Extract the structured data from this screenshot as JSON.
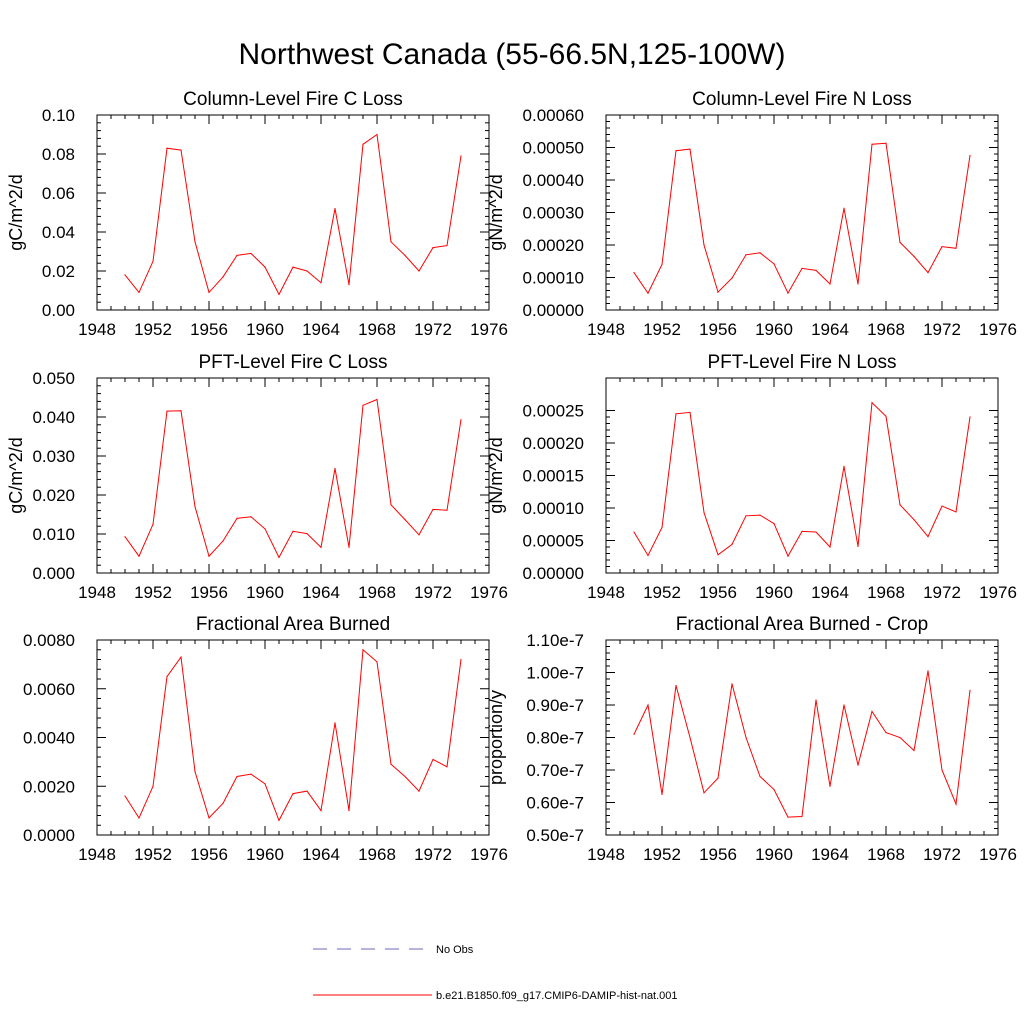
{
  "title": "Northwest Canada (55-66.5N,125-100W)",
  "legend": [
    {
      "label": "No Obs",
      "color": "#6a6ab8",
      "dashed": true
    },
    {
      "label": "b.e21.B1850.f09_g17.CMIP6-DAMIP-hist-nat.001",
      "color": "#ff0000",
      "dashed": false
    }
  ],
  "chart_data": [
    {
      "type": "line",
      "title": "Column-Level Fire C Loss",
      "ylabel": "gC/m^2/d",
      "xlim": [
        1948,
        1976
      ],
      "ylim": [
        0,
        0.1
      ],
      "xticks": [
        1948,
        1952,
        1956,
        1960,
        1964,
        1968,
        1972,
        1976
      ],
      "yticks": [
        0,
        0.02,
        0.04,
        0.06,
        0.08,
        0.1
      ],
      "ytick_labels": [
        "0.00",
        "0.02",
        "0.04",
        "0.06",
        "0.08",
        "0.10"
      ],
      "x": [
        1950,
        1951,
        1952,
        1953,
        1954,
        1955,
        1956,
        1957,
        1958,
        1959,
        1960,
        1961,
        1962,
        1963,
        1964,
        1965,
        1966,
        1967,
        1968,
        1969,
        1970,
        1971,
        1972,
        1973,
        1974
      ],
      "series": [
        {
          "color": "#ff0000",
          "values": [
            0.018,
            0.009,
            0.025,
            0.083,
            0.082,
            0.035,
            0.009,
            0.017,
            0.028,
            0.029,
            0.022,
            0.008,
            0.022,
            0.02,
            0.014,
            0.052,
            0.013,
            0.085,
            0.09,
            0.035,
            0.028,
            0.02,
            0.032,
            0.033,
            0.079
          ]
        }
      ]
    },
    {
      "type": "line",
      "title": "Column-Level Fire N Loss",
      "ylabel": "gN/m^2/d",
      "xlim": [
        1948,
        1976
      ],
      "ylim": [
        0,
        0.0006
      ],
      "xticks": [
        1948,
        1952,
        1956,
        1960,
        1964,
        1968,
        1972,
        1976
      ],
      "yticks": [
        0,
        0.0001,
        0.0002,
        0.0003,
        0.0004,
        0.0005,
        0.0006
      ],
      "ytick_labels": [
        "0.00000",
        "0.00010",
        "0.00020",
        "0.00030",
        "0.00040",
        "0.00050",
        "0.00060"
      ],
      "x": [
        1950,
        1951,
        1952,
        1953,
        1954,
        1955,
        1956,
        1957,
        1958,
        1959,
        1960,
        1961,
        1962,
        1963,
        1964,
        1965,
        1966,
        1967,
        1968,
        1969,
        1970,
        1971,
        1972,
        1973,
        1974
      ],
      "series": [
        {
          "color": "#ff0000",
          "values": [
            0.000115,
            5.2e-05,
            0.00014,
            0.00049,
            0.000495,
            0.0002,
            5.5e-05,
            9.8e-05,
            0.00017,
            0.000176,
            0.000142,
            5.2e-05,
            0.000128,
            0.000122,
            8e-05,
            0.000313,
            8e-05,
            0.00051,
            0.000513,
            0.000208,
            0.000165,
            0.000115,
            0.000195,
            0.00019,
            0.000475
          ]
        }
      ]
    },
    {
      "type": "line",
      "title": "PFT-Level Fire C Loss",
      "ylabel": "gC/m^2/d",
      "xlim": [
        1948,
        1976
      ],
      "ylim": [
        0,
        0.05
      ],
      "xticks": [
        1948,
        1952,
        1956,
        1960,
        1964,
        1968,
        1972,
        1976
      ],
      "yticks": [
        0,
        0.01,
        0.02,
        0.03,
        0.04,
        0.05
      ],
      "ytick_labels": [
        "0.000",
        "0.010",
        "0.020",
        "0.030",
        "0.040",
        "0.050"
      ],
      "x": [
        1950,
        1951,
        1952,
        1953,
        1954,
        1955,
        1956,
        1957,
        1958,
        1959,
        1960,
        1961,
        1962,
        1963,
        1964,
        1965,
        1966,
        1967,
        1968,
        1969,
        1970,
        1971,
        1972,
        1973,
        1974
      ],
      "series": [
        {
          "color": "#ff0000",
          "values": [
            0.0093,
            0.0043,
            0.0125,
            0.0415,
            0.0416,
            0.017,
            0.0043,
            0.0082,
            0.014,
            0.0144,
            0.0113,
            0.004,
            0.0107,
            0.0101,
            0.0066,
            0.0268,
            0.0066,
            0.043,
            0.0445,
            0.0175,
            0.0137,
            0.0098,
            0.0163,
            0.0161,
            0.0393
          ]
        }
      ]
    },
    {
      "type": "line",
      "title": "PFT-Level Fire N Loss",
      "ylabel": "gN/m^2/d",
      "xlim": [
        1948,
        1976
      ],
      "ylim": [
        0,
        0.0003
      ],
      "xticks": [
        1948,
        1952,
        1956,
        1960,
        1964,
        1968,
        1972,
        1976
      ],
      "yticks": [
        0,
        5e-05,
        0.0001,
        0.00015,
        0.0002,
        0.00025
      ],
      "ytick_labels": [
        "0.00000",
        "0.00005",
        "0.00010",
        "0.00015",
        "0.00020",
        "0.00025"
      ],
      "x": [
        1950,
        1951,
        1952,
        1953,
        1954,
        1955,
        1956,
        1957,
        1958,
        1959,
        1960,
        1961,
        1962,
        1963,
        1964,
        1965,
        1966,
        1967,
        1968,
        1969,
        1970,
        1971,
        1972,
        1973,
        1974
      ],
      "series": [
        {
          "color": "#ff0000",
          "values": [
            6.3e-05,
            2.7e-05,
            7e-05,
            0.000245,
            0.000247,
            9.3e-05,
            2.8e-05,
            4.4e-05,
            8.8e-05,
            8.9e-05,
            7.6e-05,
            2.6e-05,
            6.4e-05,
            6.3e-05,
            4e-05,
            0.000164,
            4.1e-05,
            0.000262,
            0.000241,
            0.000105,
            8.2e-05,
            5.6e-05,
            0.000103,
            9.4e-05,
            0.00024
          ]
        }
      ]
    },
    {
      "type": "line",
      "title": "Fractional Area Burned",
      "ylabel": "",
      "xlim": [
        1948,
        1976
      ],
      "ylim": [
        0,
        0.008
      ],
      "xticks": [
        1948,
        1952,
        1956,
        1960,
        1964,
        1968,
        1972,
        1976
      ],
      "yticks": [
        0,
        0.002,
        0.004,
        0.006,
        0.008
      ],
      "ytick_labels": [
        "0.0000",
        "0.0020",
        "0.0040",
        "0.0060",
        "0.0080"
      ],
      "x": [
        1950,
        1951,
        1952,
        1953,
        1954,
        1955,
        1956,
        1957,
        1958,
        1959,
        1960,
        1961,
        1962,
        1963,
        1964,
        1965,
        1966,
        1967,
        1968,
        1969,
        1970,
        1971,
        1972,
        1973,
        1974
      ],
      "series": [
        {
          "color": "#ff0000",
          "values": [
            0.0016,
            0.0007,
            0.002,
            0.0065,
            0.0073,
            0.0026,
            0.0007,
            0.0013,
            0.0024,
            0.0025,
            0.0021,
            0.0006,
            0.0017,
            0.0018,
            0.001,
            0.0046,
            0.001,
            0.0076,
            0.0071,
            0.0029,
            0.0024,
            0.0018,
            0.0031,
            0.0028,
            0.0072
          ]
        }
      ]
    },
    {
      "type": "line",
      "title": "Fractional Area Burned - Crop",
      "ylabel": "proportion/y",
      "xlim": [
        1948,
        1976
      ],
      "ylim": [
        5e-08,
        1.1e-07
      ],
      "xticks": [
        1948,
        1952,
        1956,
        1960,
        1964,
        1968,
        1972,
        1976
      ],
      "yticks": [
        5e-08,
        6e-08,
        7e-08,
        8e-08,
        9e-08,
        1e-07,
        1.1e-07
      ],
      "ytick_labels": [
        "0.50e-7",
        "0.60e-7",
        "0.70e-7",
        "0.80e-7",
        "0.90e-7",
        "1.00e-7",
        "1.10e-7"
      ],
      "x": [
        1950,
        1951,
        1952,
        1953,
        1954,
        1955,
        1956,
        1957,
        1958,
        1959,
        1960,
        1961,
        1962,
        1963,
        1964,
        1965,
        1966,
        1967,
        1968,
        1969,
        1970,
        1971,
        1972,
        1973,
        1974
      ],
      "series": [
        {
          "color": "#ff0000",
          "values": [
            8.1e-08,
            9e-08,
            6.25e-08,
            9.6e-08,
            8e-08,
            6.3e-08,
            6.75e-08,
            9.65e-08,
            8e-08,
            6.8e-08,
            6.4e-08,
            5.55e-08,
            5.57e-08,
            9.15e-08,
            6.5e-08,
            9e-08,
            7.15e-08,
            8.8e-08,
            8.15e-08,
            8e-08,
            7.6e-08,
            1.005e-07,
            7e-08,
            5.95e-08,
            9.45e-08
          ]
        }
      ]
    }
  ]
}
